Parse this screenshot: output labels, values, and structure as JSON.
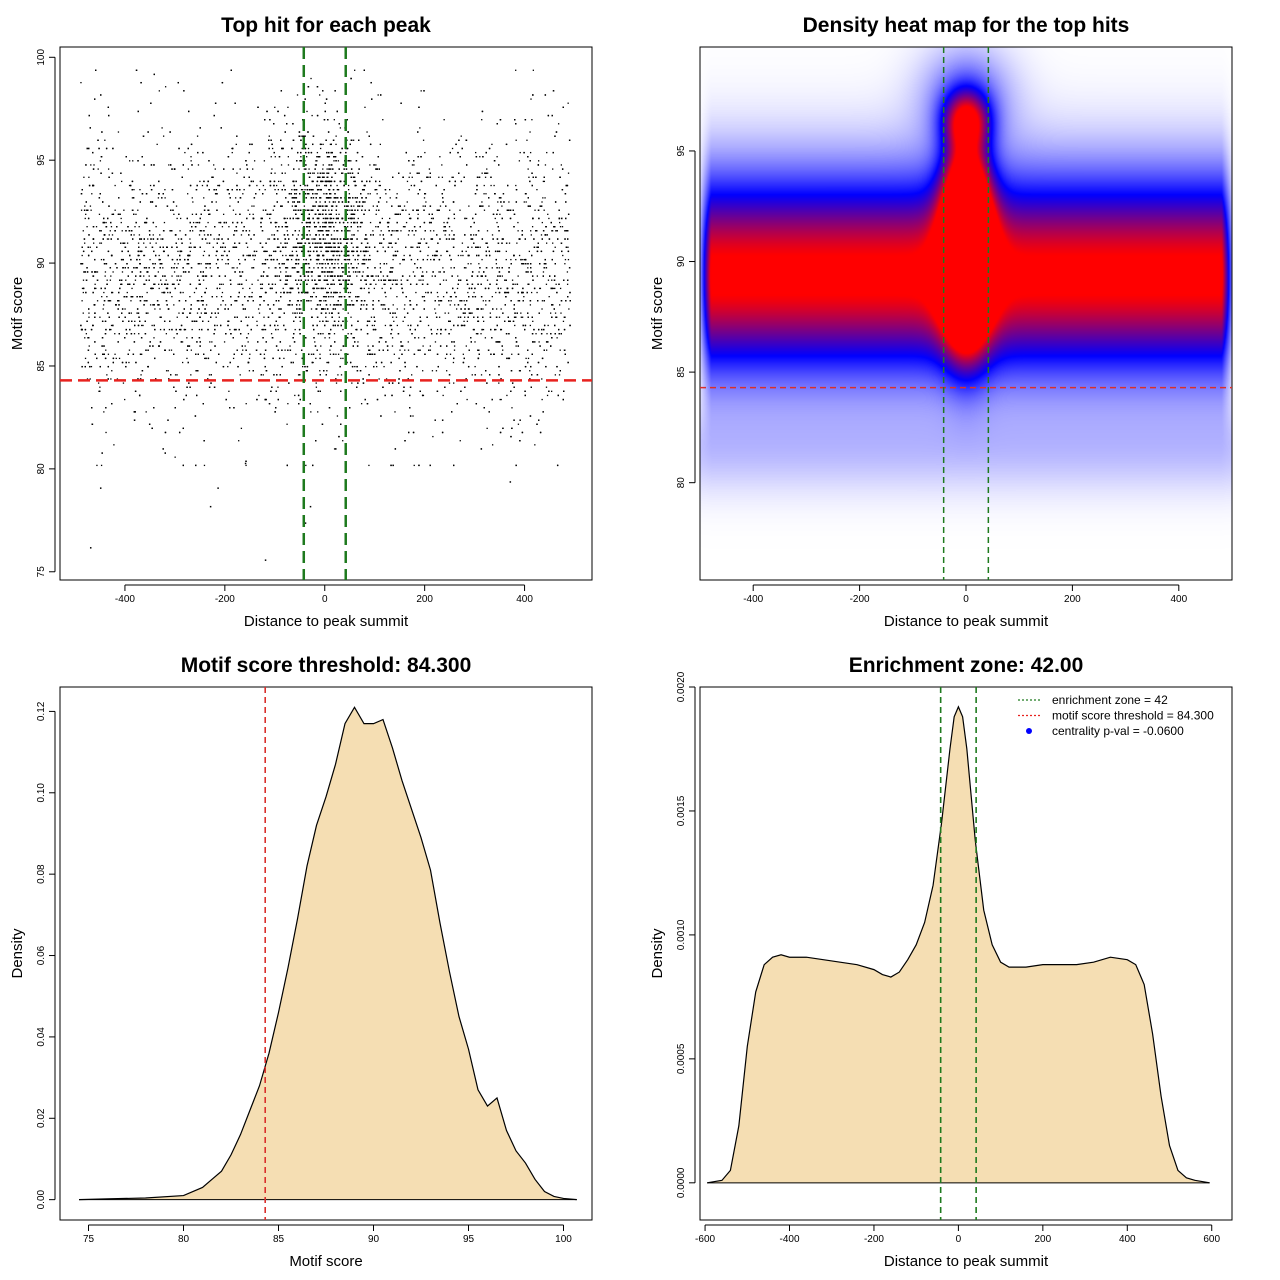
{
  "chart_data": [
    {
      "type": "scatter",
      "title": "Top hit for each peak",
      "xlabel": "Distance to peak summit",
      "ylabel": "Motif score",
      "xlim": [
        -530,
        535
      ],
      "ylim": [
        74.6,
        100.5
      ],
      "xticks": [
        -400,
        -200,
        0,
        200,
        400
      ],
      "yticks": [
        75,
        80,
        85,
        90,
        95,
        100
      ],
      "xtick_labels": [
        "-400",
        "-200",
        "0",
        "200",
        "400"
      ],
      "ytick_labels": [
        "75",
        "80",
        "85",
        "90",
        "95",
        "100"
      ],
      "point_distribution": {
        "n_points": 9000,
        "x_range": [
          -490,
          490
        ],
        "central_fraction": 0.2,
        "central_x_sd": 20,
        "central_y_mean": 91.5,
        "central_y_sd": 2.8,
        "background_y_mean": 89.6,
        "background_y_sd": 3.4
      },
      "outlier_points": [
        {
          "x": -470,
          "y": 76.2
        },
        {
          "x": -450,
          "y": 79.1
        },
        {
          "x": -120,
          "y": 75.6
        },
        {
          "x": -40,
          "y": 77.4
        },
        {
          "x": -30,
          "y": 78.2
        },
        {
          "x": 370,
          "y": 79.4
        },
        {
          "x": -230,
          "y": 78.2
        },
        {
          "x": -215,
          "y": 79.1
        },
        {
          "x": -160,
          "y": 80.3
        }
      ],
      "hlines": [
        {
          "y": 84.3,
          "color": "#e8221f",
          "style": "dashed"
        }
      ],
      "vlines": [
        {
          "x": -42,
          "color": "#1e7a1e",
          "style": "dashed"
        },
        {
          "x": 42,
          "color": "#1e7a1e",
          "style": "dashed"
        }
      ]
    },
    {
      "type": "heatmap",
      "title": "Density heat map for the top hits",
      "xlabel": "Distance to peak summit",
      "ylabel": "Motif score",
      "xlim": [
        -500,
        500
      ],
      "ylim": [
        75.6,
        99.7
      ],
      "xticks": [
        -400,
        -200,
        0,
        200,
        400
      ],
      "yticks": [
        80,
        85,
        90,
        95
      ],
      "xtick_labels": [
        "-400",
        "-200",
        "0",
        "200",
        "400"
      ],
      "ytick_labels": [
        "80",
        "85",
        "90",
        "95"
      ],
      "colors": {
        "low": "#ffffff",
        "mid": "#0000ff",
        "high": "#ff0000"
      },
      "density_peak": {
        "x": 0,
        "y": 90
      },
      "hlines": [
        {
          "y": 84.3,
          "color": "#d9302c",
          "style": "dashed"
        }
      ],
      "vlines": [
        {
          "x": -42,
          "color": "#1e7a1e",
          "style": "dashed"
        },
        {
          "x": 42,
          "color": "#1e7a1e",
          "style": "dashed"
        }
      ]
    },
    {
      "type": "area",
      "title": "Motif score threshold: 84.300",
      "xlabel": "Motif score",
      "ylabel": "Density",
      "xlim": [
        73.5,
        101.5
      ],
      "ylim": [
        -0.005,
        0.126
      ],
      "xticks": [
        75,
        80,
        85,
        90,
        95,
        100
      ],
      "yticks": [
        0.0,
        0.02,
        0.04,
        0.06,
        0.08,
        0.1,
        0.12
      ],
      "xtick_labels": [
        "75",
        "80",
        "85",
        "90",
        "95",
        "100"
      ],
      "ytick_labels": [
        "0.00",
        "0.02",
        "0.04",
        "0.06",
        "0.08",
        "0.10",
        "0.12"
      ],
      "fill_color": "#f5deb3",
      "x": [
        74.5,
        76,
        78,
        80,
        81,
        81.5,
        82,
        82.5,
        83,
        83.5,
        84,
        84.5,
        85,
        85.5,
        86,
        86.5,
        87,
        87.5,
        88,
        88.5,
        89,
        89.5,
        90,
        90.5,
        91,
        91.5,
        92,
        92.5,
        93,
        93.5,
        94,
        94.5,
        95,
        95.5,
        96,
        96.5,
        97,
        97.5,
        98,
        98.5,
        99,
        99.5,
        100,
        100.7
      ],
      "y": [
        0.0,
        0.0002,
        0.0004,
        0.001,
        0.003,
        0.005,
        0.007,
        0.011,
        0.016,
        0.022,
        0.028,
        0.036,
        0.046,
        0.057,
        0.069,
        0.082,
        0.092,
        0.099,
        0.107,
        0.117,
        0.121,
        0.117,
        0.117,
        0.118,
        0.111,
        0.103,
        0.096,
        0.089,
        0.081,
        0.068,
        0.056,
        0.045,
        0.037,
        0.027,
        0.023,
        0.025,
        0.017,
        0.012,
        0.009,
        0.005,
        0.002,
        0.0008,
        0.0003,
        0.0
      ]
    },
    {
      "type": "area",
      "title": "Enrichment zone: 42.00",
      "xlabel": "Distance to peak summit",
      "ylabel": "Density",
      "xlim": [
        -612,
        648
      ],
      "ylim": [
        -0.00015,
        0.002
      ],
      "xticks": [
        -600,
        -400,
        -200,
        0,
        200,
        400,
        600
      ],
      "yticks": [
        0.0,
        0.0005,
        0.001,
        0.0015,
        0.002
      ],
      "xtick_labels": [
        "-600",
        "-400",
        "-200",
        "0",
        "200",
        "400",
        "600"
      ],
      "ytick_labels": [
        "0.0000",
        "0.0005",
        "0.0010",
        "0.0015",
        "0.0020"
      ],
      "fill_color": "#f5deb3",
      "x": [
        -595,
        -560,
        -540,
        -520,
        -500,
        -480,
        -460,
        -440,
        -420,
        -400,
        -360,
        -320,
        -280,
        -240,
        -200,
        -180,
        -160,
        -140,
        -120,
        -100,
        -80,
        -60,
        -40,
        -20,
        -10,
        0,
        10,
        20,
        40,
        60,
        80,
        100,
        120,
        160,
        200,
        240,
        280,
        320,
        360,
        400,
        420,
        440,
        460,
        480,
        500,
        520,
        540,
        560,
        595
      ],
      "y": [
        0.0,
        1e-05,
        5e-05,
        0.00023,
        0.00055,
        0.00077,
        0.00088,
        0.00091,
        0.00092,
        0.00091,
        0.00091,
        0.0009,
        0.00089,
        0.00088,
        0.00086,
        0.00084,
        0.00083,
        0.00085,
        0.0009,
        0.00096,
        0.00105,
        0.0012,
        0.00145,
        0.00175,
        0.00188,
        0.00192,
        0.00188,
        0.00175,
        0.00138,
        0.0011,
        0.00096,
        0.00089,
        0.00087,
        0.00087,
        0.00088,
        0.00088,
        0.00088,
        0.00089,
        0.00091,
        0.0009,
        0.00088,
        0.0008,
        0.0006,
        0.00035,
        0.00015,
        5e-05,
        2e-05,
        1e-05,
        0.0
      ],
      "vlines": [
        {
          "x": -42,
          "color": "#1e7a1e",
          "style": "dashed"
        },
        {
          "x": 42,
          "color": "#1e7a1e",
          "style": "dashed"
        }
      ],
      "legend": {
        "position": "top-right",
        "entries": [
          {
            "label": "enrichment zone = 42",
            "color": "#1e7a1e",
            "kind": "dotted-line"
          },
          {
            "label": "motif score threshold = 84.300",
            "color": "#e8221f",
            "kind": "dotted-line"
          },
          {
            "label": "centrality p-val = -0.0600",
            "color": "#0000ff",
            "kind": "point"
          }
        ]
      }
    }
  ]
}
